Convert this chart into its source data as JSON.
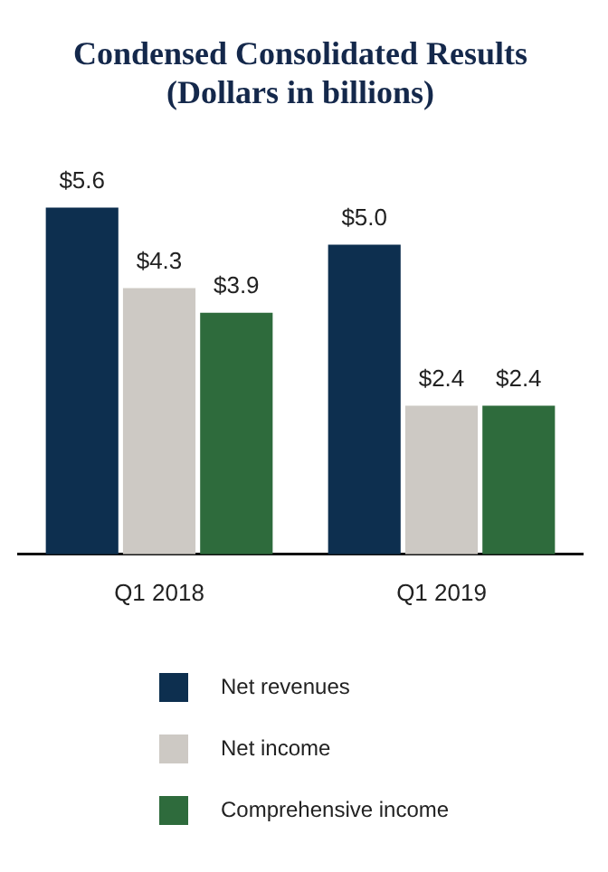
{
  "chart_data": {
    "type": "bar",
    "title": "Condensed Consolidated Results",
    "subtitle": "(Dollars in billions)",
    "categories": [
      "Q1 2018",
      "Q1 2019"
    ],
    "series": [
      {
        "name": "Net revenues",
        "color": "#0d2f4f",
        "values": [
          5.6,
          5.0
        ],
        "value_labels": [
          "$5.6",
          "$5.0"
        ]
      },
      {
        "name": "Net income",
        "color": "#cdc9c4",
        "values": [
          4.3,
          2.4
        ],
        "value_labels": [
          "$4.3",
          "$2.4"
        ]
      },
      {
        "name": "Comprehensive income",
        "color": "#2e6b3c",
        "values": [
          3.9,
          2.4
        ],
        "value_labels": [
          "$3.9",
          "$2.4"
        ]
      }
    ],
    "legend": "bottom",
    "grid": false
  }
}
